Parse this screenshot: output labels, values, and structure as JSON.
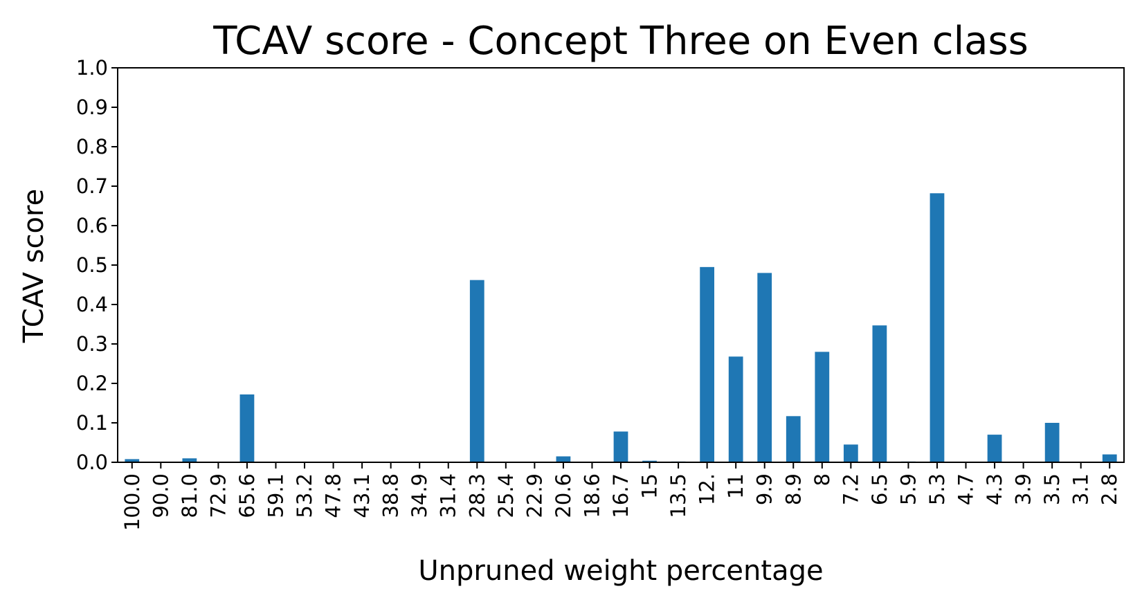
{
  "chart_data": {
    "type": "bar",
    "title": "TCAV score - Concept Three on Even class",
    "xlabel": "Unpruned weight percentage",
    "ylabel": "TCAV score",
    "ylim": [
      0,
      1.0
    ],
    "yticks": [
      "0.0",
      "0.1",
      "0.2",
      "0.3",
      "0.4",
      "0.5",
      "0.6",
      "0.7",
      "0.8",
      "0.9",
      "1.0"
    ],
    "categories": [
      "100.0",
      "90.0",
      "81.0",
      "72.9",
      "65.6",
      "59.1",
      "53.2",
      "47.8",
      "43.1",
      "38.8",
      "34.9",
      "31.4",
      "28.3",
      "25.4",
      "22.9",
      "20.6",
      "18.6",
      "16.7",
      "15",
      "13.5",
      "12.",
      "11",
      "9.9",
      "8.9",
      "8",
      "7.2",
      "6.5",
      "5.9",
      "5.3",
      "4.7",
      "4.3",
      "3.9",
      "3.5",
      "3.1",
      "2.8"
    ],
    "values": [
      0.008,
      0,
      0.01,
      0,
      0.172,
      0,
      0,
      0,
      0,
      0,
      0,
      0,
      0.462,
      0,
      0,
      0.015,
      0,
      0.078,
      0.004,
      0.002,
      0.495,
      0.268,
      0.48,
      0.117,
      0.28,
      0.045,
      0.347,
      0.002,
      0.682,
      0,
      0.07,
      0,
      0.1,
      0,
      0.02
    ],
    "grid": false,
    "legend": "none",
    "color": "#1f77b4"
  }
}
